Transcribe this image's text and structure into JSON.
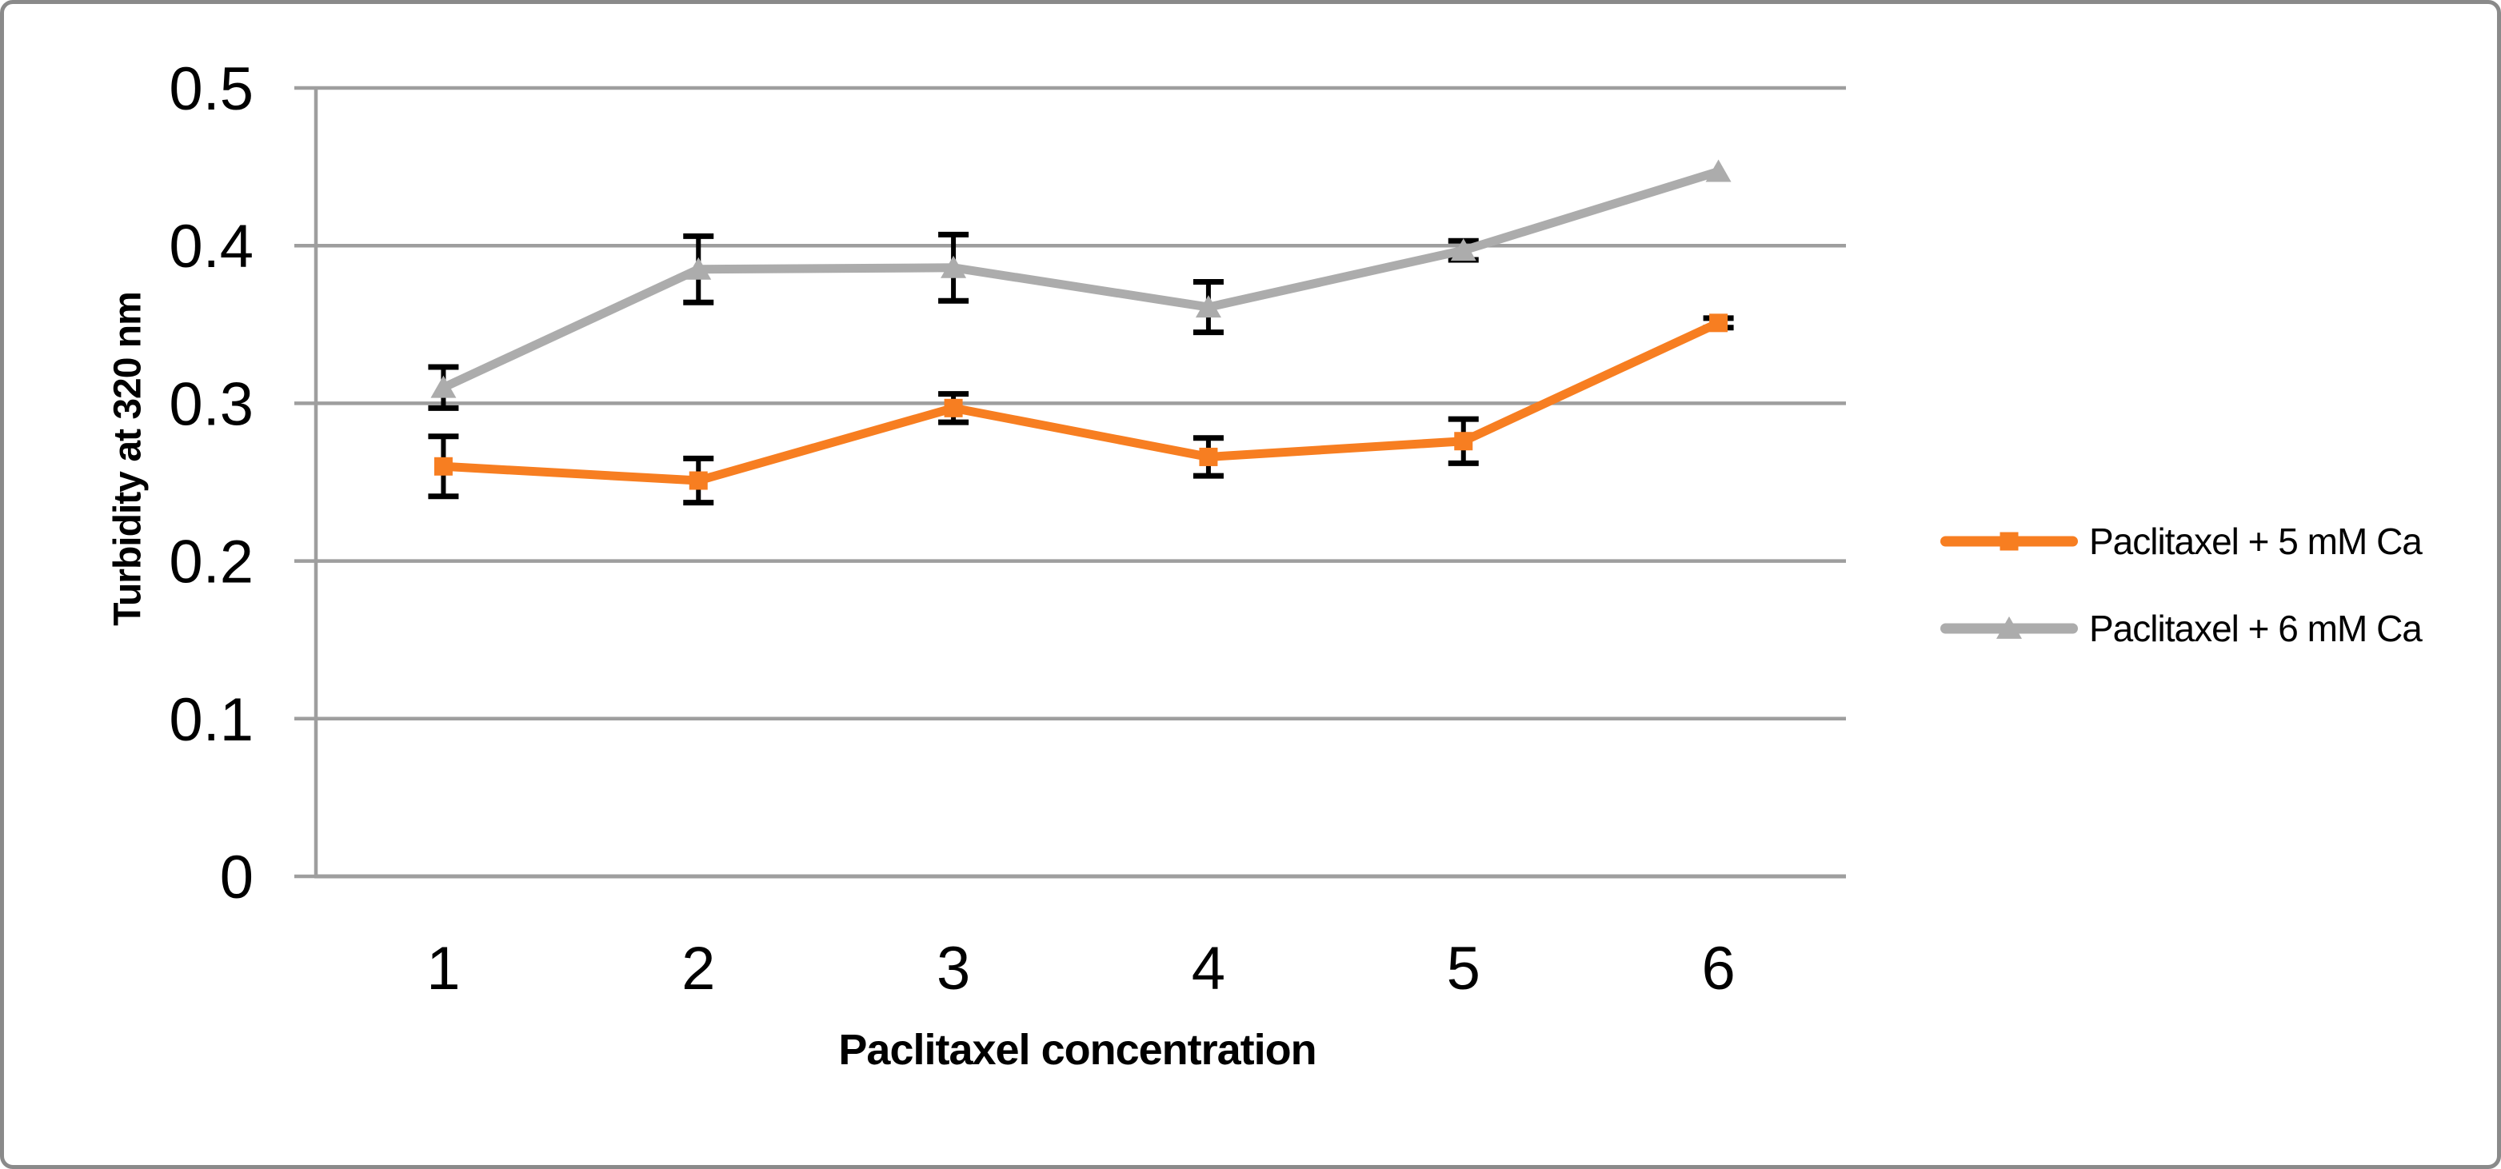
{
  "chart_data": {
    "type": "line",
    "title": "",
    "xlabel": "Paclitaxel concentration",
    "ylabel": "Turbidity at 320 nm",
    "categories": [
      "1",
      "2",
      "3",
      "4",
      "5",
      "6"
    ],
    "ylim": [
      0,
      0.5
    ],
    "yticks": [
      0,
      0.1,
      0.2,
      0.3,
      0.4,
      0.5
    ],
    "ytick_labels": [
      "0",
      "0.1",
      "0.2",
      "0.3",
      "0.4",
      "0.5"
    ],
    "grid": true,
    "legend_position": "right-middle",
    "series": [
      {
        "name": "Paclitaxel + 5 mM Ca",
        "color": "#F77E21",
        "marker": "square",
        "values": [
          0.26,
          0.251,
          0.297,
          0.266,
          0.276,
          0.351
        ],
        "errors": [
          0.019,
          0.014,
          0.009,
          0.012,
          0.014,
          0.003
        ]
      },
      {
        "name": "Paclitaxel + 6 mM Ca",
        "color": "#ACACAC",
        "marker": "triangle",
        "values": [
          0.31,
          0.385,
          0.386,
          0.361,
          0.397,
          0.447
        ],
        "errors": [
          0.013,
          0.021,
          0.021,
          0.016,
          0.006,
          0
        ]
      }
    ],
    "error_bar_color": "#000000",
    "gridline_color": "#9E9E9E",
    "axis_color": "#9E9E9E",
    "text_color": "#000000",
    "background_color": "#FFFFFF",
    "border_color": "#8A8A8A"
  }
}
